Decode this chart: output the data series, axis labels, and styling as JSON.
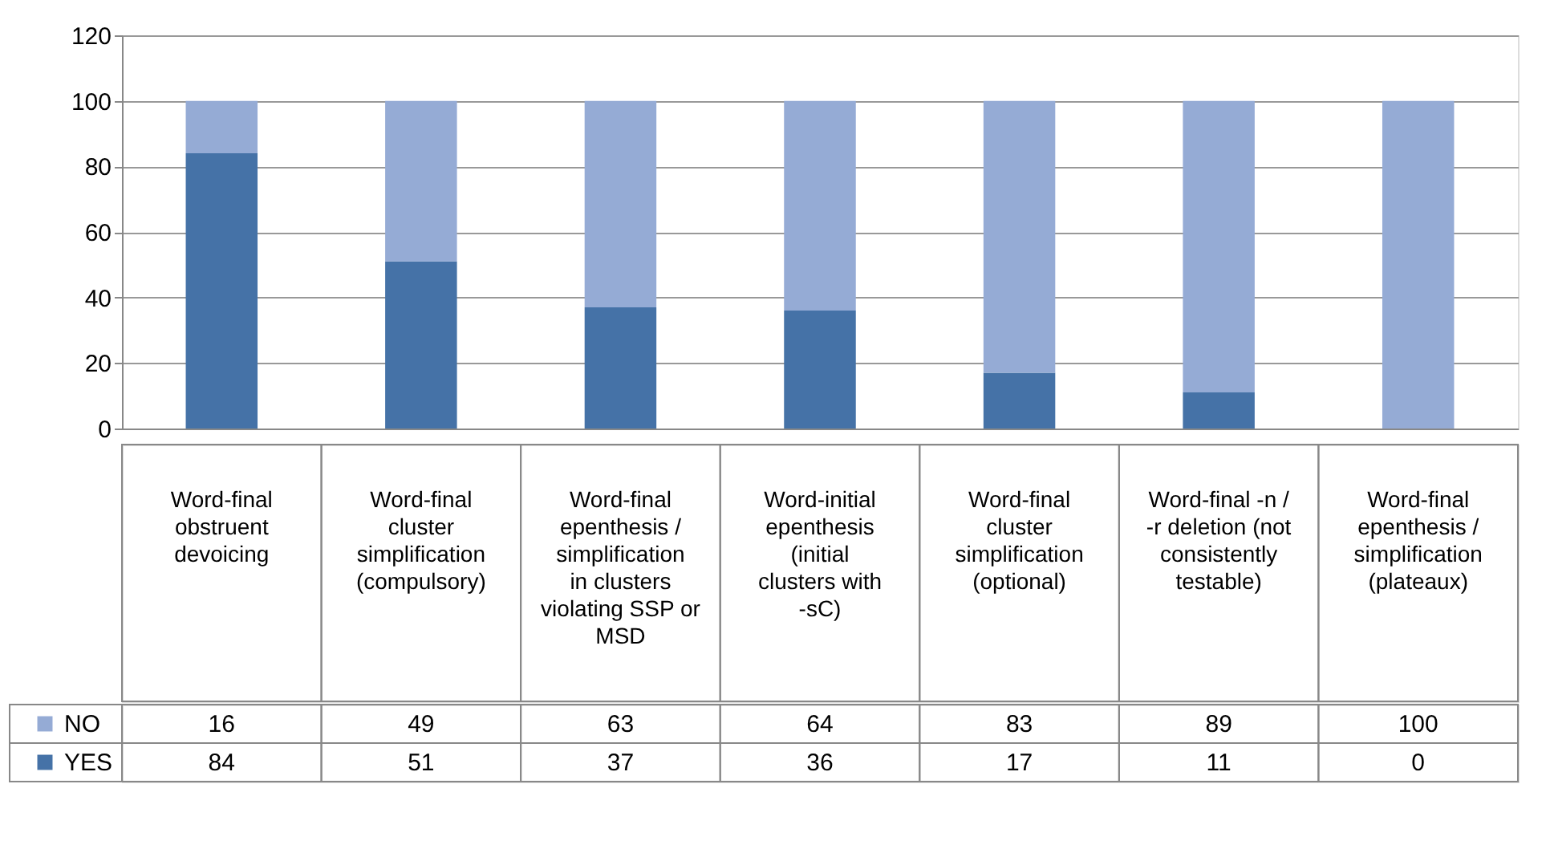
{
  "chart_data": {
    "type": "bar",
    "stacked": true,
    "categories": [
      "Word-final obstruent devoicing",
      "Word-final cluster simplification (compulsory)",
      "Word-final epenthesis / simplification in clusters violating SSP or MSD",
      "Word-initial epenthesis (initial clusters with -sC)",
      "Word-final cluster simplification (optional)",
      "Word-final -n / -r deletion (not consistently testable)",
      "Word-final epenthesis / simplification (plateaux)"
    ],
    "series": [
      {
        "name": "YES",
        "color": "#4572a7",
        "values": [
          84,
          51,
          37,
          36,
          17,
          11,
          0
        ]
      },
      {
        "name": "NO",
        "color": "#95abd5",
        "values": [
          16,
          49,
          63,
          64,
          83,
          89,
          100
        ]
      }
    ],
    "ylim": [
      0,
      120
    ],
    "yticks": [
      0,
      20,
      40,
      60,
      80,
      100,
      120
    ],
    "grid": "y",
    "legend": "bottom left",
    "data_labels": true
  }
}
